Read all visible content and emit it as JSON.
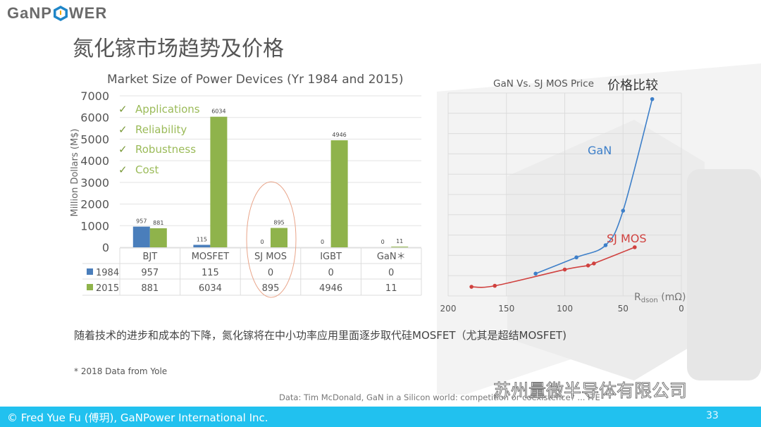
{
  "logo": {
    "text_left": "GaNP",
    "text_right": "WER"
  },
  "slide": {
    "title": "氮化镓市场趋势及价格",
    "body_text": "随着技术的进步和成本的下降，氮化镓将在中小功率应用里面逐步取代硅MOSFET（尤其是超结MOSFET)",
    "note": "* 2018 Data from Yole",
    "source": "Data: Tim McDonald, GaN in a Silicon world: competition or coexistence? ... ITE",
    "checklist": [
      "Applications",
      "Reliability",
      "Robustness",
      "Cost"
    ],
    "checkmark": "✓",
    "watermark": "苏州量微半导体有限公司"
  },
  "footer": {
    "copyright": "© Fred Yue Fu (傅玥), GaNPower International Inc.",
    "page_number": "33",
    "color": "#21c1ef"
  },
  "chart_data": [
    {
      "type": "bar",
      "title": "Market Size of Power Devices (Yr 1984 and 2015)",
      "xlabel": "",
      "ylabel": "Million Dollars (M$)",
      "ylim": [
        0,
        7000
      ],
      "yticks": [
        0,
        1000,
        2000,
        3000,
        4000,
        5000,
        6000,
        7000
      ],
      "grid": true,
      "legend": "data-table",
      "categories": [
        "BJT",
        "MOSFET",
        "SJ MOS",
        "IGBT",
        "GaN＊"
      ],
      "series": [
        {
          "name": "1984",
          "color": "#4a7ebb",
          "values": [
            957,
            115,
            0,
            0,
            0
          ]
        },
        {
          "name": "2015",
          "color": "#8fb34b",
          "values": [
            881,
            6034,
            895,
            4946,
            11
          ]
        }
      ],
      "annotation": "SJ MOS circled"
    },
    {
      "type": "line",
      "title": "GaN Vs. SJ MOS Price",
      "title_cn": "价格比较",
      "xlabel_main": "R",
      "xlabel_sub": "dson",
      "xlabel_unit": " (mΩ)",
      "xlim": [
        200,
        0
      ],
      "xticks": [
        200,
        150,
        100,
        50,
        0
      ],
      "ylim": [
        0,
        10
      ],
      "yticks_labeled": false,
      "grid": true,
      "series": [
        {
          "name": "GaN",
          "color": "#3d7fc9",
          "x": [
            125,
            90,
            65,
            50,
            25
          ],
          "y": [
            1.1,
            1.9,
            2.5,
            4.2,
            9.7
          ]
        },
        {
          "name": "SJ MOS",
          "color": "#d0413f",
          "x": [
            180,
            160,
            100,
            80,
            75,
            40
          ],
          "y": [
            0.45,
            0.5,
            1.3,
            1.5,
            1.6,
            2.4
          ]
        }
      ]
    }
  ]
}
